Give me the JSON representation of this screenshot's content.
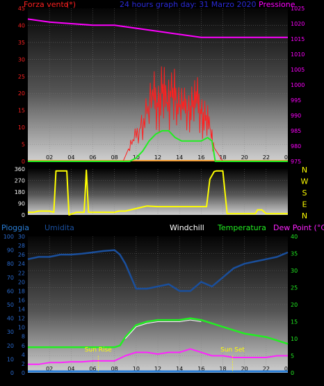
{
  "colors": {
    "wind": "#ff2020",
    "pressure": "#ff00ff",
    "direction": "#ffff00",
    "humidity": "#1a4f9c",
    "rain": "#2a7fd8",
    "temperature": "#22ee22",
    "dewpoint": "#ff22ff",
    "windchill": "#ffffff",
    "axis_left": "#2a6bd0",
    "tick": "#000000"
  },
  "panel_top": {
    "left_title": "Forza vento",
    "left_unit": "(*)",
    "center_title": "24 hours graph day: 31 Marzo 2020",
    "right_title": "Pressione",
    "left_ticks": [
      "0",
      "5",
      "10",
      "15",
      "20",
      "25",
      "30",
      "35",
      "40",
      "45"
    ],
    "right_ticks": [
      "975",
      "980",
      "985",
      "990",
      "995",
      "1000",
      "1005",
      "1010",
      "1015",
      "1020",
      "1025"
    ],
    "x_ticks": [
      "02",
      "04",
      "06",
      "08",
      "10",
      "12",
      "14",
      "16",
      "18",
      "20",
      "22",
      "00"
    ]
  },
  "panel_mid": {
    "left_ticks": [
      "0",
      "90",
      "180",
      "270",
      "360"
    ],
    "compass": [
      "N",
      "W",
      "S",
      "E",
      "N"
    ]
  },
  "panel_bot": {
    "labels": {
      "rain": "Pioggia",
      "humidity": "Umidita",
      "windchill": "Windchill",
      "temperature": "Temperatura",
      "dewpoint": "Dew Point (°C)"
    },
    "rain_ticks": [
      "0",
      "10",
      "20",
      "30",
      "40",
      "50",
      "60",
      "70",
      "80",
      "90",
      "100"
    ],
    "hum_ticks": [
      "0",
      "2",
      "4",
      "6",
      "8",
      "10",
      "12",
      "14",
      "16",
      "18",
      "20",
      "22",
      "24",
      "26",
      "28",
      "30"
    ],
    "right_ticks": [
      "0",
      "5",
      "10",
      "15",
      "20",
      "25",
      "30",
      "35",
      "40"
    ],
    "x_ticks": [
      "02",
      "04",
      "06",
      "08",
      "10",
      "12",
      "14",
      "16",
      "18",
      "20",
      "22",
      "00"
    ],
    "sun_rise": "Sun Rise",
    "sun_set": "Sun Set"
  },
  "chart_data": [
    {
      "type": "line",
      "title": "24 hours graph day: 31 Marzo 2020",
      "x_unit": "hour",
      "xlim": [
        0,
        24
      ],
      "ylabel": "Forza vento",
      "ylim": [
        0,
        45
      ],
      "y2label": "Pressione",
      "y2lim": [
        975,
        1025
      ],
      "series": [
        {
          "name": "Forza vento",
          "axis": "left",
          "x": [
            0,
            4,
            8,
            8.8,
            9.2,
            9.8,
            10.4,
            11,
            11.6,
            12,
            12.4,
            12.8,
            13.2,
            13.6,
            14,
            14.4,
            14.8,
            15.2,
            15.6,
            16,
            16.4,
            16.8,
            17.2,
            18,
            24
          ],
          "y": [
            0,
            0,
            0,
            0,
            3,
            6,
            10,
            14,
            18,
            16,
            20,
            17,
            19,
            18,
            16,
            15,
            15,
            16,
            17,
            14,
            12,
            10,
            4,
            0,
            0
          ]
        },
        {
          "axis": "left",
          "x": [
            0,
            8,
            9.4,
            10,
            10.6,
            11.2,
            11.8,
            12.4,
            13,
            13.6,
            14.2,
            14.8,
            15.4,
            16,
            16.6,
            17,
            17.3,
            24
          ],
          "y": [
            0,
            0,
            0,
            1,
            3,
            6,
            8,
            9,
            9,
            7,
            6,
            6,
            6,
            6,
            7,
            6,
            0,
            0
          ]
        },
        {
          "name": "Pressione",
          "axis": "right",
          "x": [
            0,
            2,
            4,
            6,
            8,
            10,
            12,
            14,
            16,
            18,
            20,
            22,
            24
          ],
          "y": [
            1021.5,
            1020.5,
            1020,
            1019.5,
            1019.5,
            1018.5,
            1017.5,
            1016.5,
            1015.5,
            1015.5,
            1015.5,
            1015.5,
            1015.5
          ]
        }
      ]
    },
    {
      "type": "line",
      "xlim": [
        0,
        24
      ],
      "ylim": [
        0,
        360
      ],
      "series": [
        {
          "name": "direction",
          "x": [
            0,
            0.5,
            1,
            1.5,
            2,
            2.4,
            2.6,
            3.6,
            3.8,
            4.5,
            5.2,
            5.4,
            5.6,
            5.7,
            6,
            8,
            8.4,
            9,
            10.5,
            11,
            12,
            14,
            15.5,
            16,
            16.5,
            16.8,
            17.2,
            17.4,
            18,
            18.4,
            18.6,
            21,
            21.2,
            21.6,
            22,
            24
          ],
          "y": [
            20,
            20,
            30,
            30,
            30,
            20,
            345,
            345,
            0,
            20,
            20,
            350,
            20,
            20,
            20,
            20,
            30,
            30,
            60,
            70,
            65,
            65,
            65,
            65,
            65,
            280,
            340,
            345,
            345,
            10,
            10,
            10,
            40,
            40,
            10,
            10
          ]
        }
      ]
    },
    {
      "type": "line",
      "xlim": [
        0,
        24
      ],
      "ylabel": "Umidita",
      "ylim": [
        0,
        30
      ],
      "y2label": "Temperatura / Dew Point (°C)",
      "y2lim": [
        0,
        40
      ],
      "series": [
        {
          "name": "Umidita",
          "axis": "left",
          "x": [
            0,
            1,
            2,
            3,
            4,
            5,
            6,
            7,
            8,
            8.5,
            9,
            10,
            11,
            12,
            13,
            14,
            15,
            15.5,
            16,
            17,
            18,
            19,
            20,
            21,
            22,
            23,
            24
          ],
          "y": [
            25,
            25.5,
            25.5,
            26,
            26,
            26.2,
            26.5,
            26.8,
            27,
            26,
            24,
            18.5,
            18.5,
            19,
            19.5,
            18,
            18,
            19,
            20,
            19,
            21,
            23,
            24,
            24.5,
            25,
            25.5,
            26.5
          ]
        },
        {
          "name": "Temperatura",
          "axis": "right",
          "x": [
            0,
            2,
            4,
            6,
            8,
            8.5,
            9,
            10,
            11,
            12,
            13,
            14,
            15,
            16,
            17,
            18,
            19,
            20,
            21,
            22,
            23,
            24
          ],
          "y": [
            7.5,
            7.5,
            7.5,
            7.5,
            7.5,
            8,
            10.5,
            14,
            15,
            15.5,
            15.5,
            15.5,
            16,
            15.5,
            14.5,
            13.5,
            12.5,
            11.5,
            11,
            10.5,
            9.5,
            8.5
          ]
        },
        {
          "name": "Windchill",
          "axis": "right",
          "x": [
            9,
            10,
            11,
            12,
            13,
            14,
            15,
            16
          ],
          "y": [
            10,
            13.5,
            14.5,
            15,
            15,
            15,
            15.5,
            15
          ]
        },
        {
          "name": "Dew Point (°C)",
          "axis": "right",
          "x": [
            0,
            1,
            2,
            3,
            4,
            5,
            6,
            7,
            8,
            9,
            10,
            11,
            12,
            13,
            14,
            15,
            16,
            17,
            18,
            19,
            20,
            21,
            22,
            23,
            24
          ],
          "y": [
            2.5,
            2.5,
            3,
            3,
            3.2,
            3.2,
            3.5,
            3.5,
            3.5,
            5,
            6,
            6,
            5.5,
            6,
            6,
            7,
            6,
            5,
            5,
            4.5,
            4.5,
            4.5,
            4.5,
            5,
            5
          ]
        },
        {
          "name": "Pioggia",
          "axis": "left",
          "x": [
            0,
            24
          ],
          "y": [
            0,
            0
          ]
        }
      ],
      "annotations": [
        {
          "label": "Sun Rise",
          "x": 6.5
        },
        {
          "label": "Sun Set",
          "x": 18.9
        }
      ]
    }
  ]
}
